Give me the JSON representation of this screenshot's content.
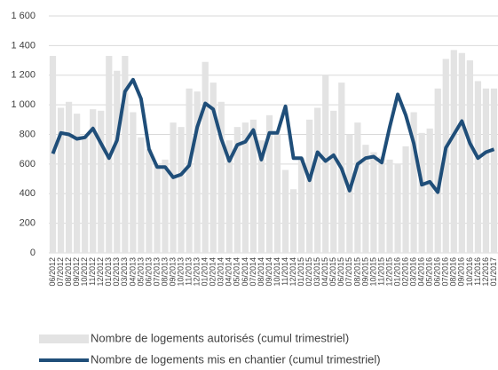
{
  "chart_data": {
    "type": "bar-line",
    "categories": [
      "06/2012",
      "07/2012",
      "08/2012",
      "09/2012",
      "10/2012",
      "11/2012",
      "12/2012",
      "01/2013",
      "02/2013",
      "03/2013",
      "04/2013",
      "05/2013",
      "06/2013",
      "07/2013",
      "08/2013",
      "09/2013",
      "10/2013",
      "11/2013",
      "12/2013",
      "01/2014",
      "02/2014",
      "03/2014",
      "04/2014",
      "05/2014",
      "06/2014",
      "07/2014",
      "08/2014",
      "09/2014",
      "10/2014",
      "11/2014",
      "12/2014",
      "01/2015",
      "02/2015",
      "03/2015",
      "04/2015",
      "05/2015",
      "06/2015",
      "07/2015",
      "08/2015",
      "09/2015",
      "10/2015",
      "11/2015",
      "12/2015",
      "01/2016",
      "02/2016",
      "03/2016",
      "04/2016",
      "05/2016",
      "06/2016",
      "07/2016",
      "08/2016",
      "09/2016",
      "10/2016",
      "11/2016",
      "12/2016",
      "01/2017"
    ],
    "series": [
      {
        "name": "Nombre de logements autorisés (cumul trimestriel)",
        "kind": "bar",
        "color": "#e3e3e3",
        "values": [
          1330,
          980,
          1020,
          940,
          780,
          970,
          960,
          1330,
          1230,
          1330,
          950,
          780,
          700,
          600,
          630,
          880,
          850,
          1110,
          1090,
          1290,
          1150,
          1020,
          760,
          850,
          880,
          900,
          760,
          930,
          800,
          560,
          430,
          640,
          900,
          980,
          1200,
          960,
          1150,
          800,
          880,
          730,
          680,
          650,
          630,
          600,
          720,
          950,
          810,
          840,
          1110,
          1310,
          1370,
          1350,
          1300,
          1160,
          1110,
          1110
        ]
      },
      {
        "name": "Nombre de logements mis en chantier (cumul trimestriel)",
        "kind": "line",
        "color": "#1f4e79",
        "values": [
          670,
          810,
          800,
          770,
          780,
          840,
          740,
          640,
          760,
          1090,
          1170,
          1040,
          700,
          580,
          580,
          510,
          530,
          590,
          850,
          1010,
          970,
          770,
          620,
          730,
          750,
          830,
          630,
          810,
          810,
          990,
          640,
          640,
          490,
          680,
          620,
          660,
          570,
          420,
          600,
          640,
          650,
          610,
          850,
          1070,
          930,
          740,
          460,
          480,
          410,
          710,
          800,
          890,
          740,
          640,
          680,
          700
        ]
      }
    ],
    "ylim": [
      0,
      1600
    ],
    "yticks": [
      0,
      200,
      400,
      600,
      800,
      {
        "value": 1000,
        "label": "1 000"
      },
      {
        "value": 1200,
        "label": "1 200"
      },
      {
        "value": 1400,
        "label": "1 400"
      },
      {
        "value": 1600,
        "label": "1 600"
      }
    ],
    "grid": true,
    "legend": "bottom"
  }
}
